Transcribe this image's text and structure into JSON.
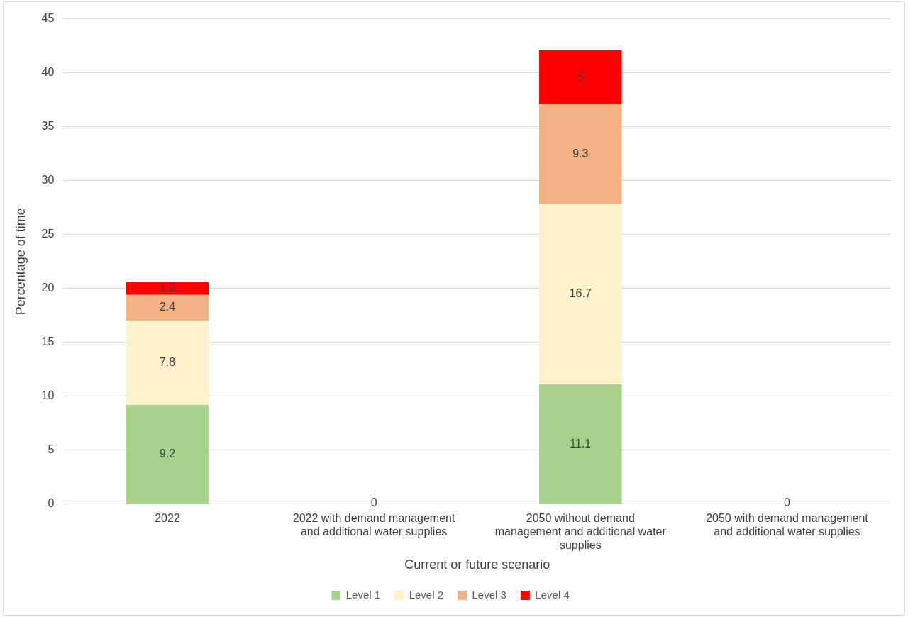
{
  "chart_data": {
    "type": "bar",
    "stacked": true,
    "xlabel": "Current or future scenario",
    "ylabel": "Percentage of time",
    "categories": [
      "2022",
      "2022 with demand management and additional water supplies",
      "2050 without demand management and additional water supplies",
      "2050 with demand management and additional water supplies"
    ],
    "series": [
      {
        "name": "Level 1",
        "color": "#a9d18e",
        "values": [
          9.2,
          0,
          11.1,
          0
        ],
        "value_labels": [
          "9.2",
          "0",
          "11.1",
          "0"
        ]
      },
      {
        "name": "Level 2",
        "color": "#fff2cc",
        "values": [
          7.8,
          0,
          16.7,
          0
        ],
        "value_labels": [
          "7.8",
          null,
          "16.7",
          null
        ]
      },
      {
        "name": "Level 3",
        "color": "#f4b183",
        "values": [
          2.4,
          0,
          9.3,
          0
        ],
        "value_labels": [
          "2.4",
          null,
          "9.3",
          null
        ]
      },
      {
        "name": "Level 4",
        "color": "#ff0000",
        "values": [
          1.2,
          0,
          5,
          0
        ],
        "value_labels": [
          "1.2",
          null,
          "5",
          null
        ]
      }
    ],
    "ylim": [
      0,
      45
    ],
    "yticks": [
      0,
      5,
      10,
      15,
      20,
      25,
      30,
      35,
      40,
      45
    ],
    "grid": "y",
    "legend": "bottom"
  }
}
